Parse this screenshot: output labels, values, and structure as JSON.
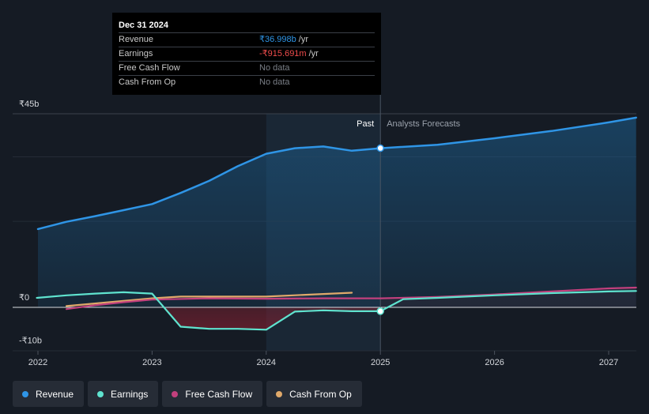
{
  "chart_data": {
    "type": "line",
    "currency_prefix": "₹",
    "y_tick_labels": [
      "₹45b",
      "₹0",
      "-₹10b"
    ],
    "ylim": [
      -10,
      45
    ],
    "x_tick_labels": [
      "2022",
      "2023",
      "2024",
      "2025",
      "2026",
      "2027"
    ],
    "x_ticks": [
      2022,
      2023,
      2024,
      2025,
      2026,
      2027
    ],
    "xlim": [
      2021.8,
      2027.24
    ],
    "past_label": "Past",
    "forecast_label": "Analysts Forecasts",
    "divider_x": 2025.0,
    "highlight_start_x": 2024.0,
    "series": [
      {
        "name": "Revenue",
        "color": "#2f95e6",
        "unit": "b",
        "past": [
          [
            2022.0,
            18.2
          ],
          [
            2022.25,
            19.9
          ],
          [
            2022.5,
            21.2
          ],
          [
            2022.75,
            22.6
          ],
          [
            2023.0,
            24.0
          ],
          [
            2023.25,
            26.6
          ],
          [
            2023.5,
            29.4
          ],
          [
            2023.75,
            32.8
          ],
          [
            2024.0,
            35.7
          ],
          [
            2024.25,
            37.0
          ],
          [
            2024.5,
            37.4
          ],
          [
            2024.75,
            36.4
          ],
          [
            2025.0,
            37.0
          ]
        ],
        "forecast": [
          [
            2025.0,
            37.0
          ],
          [
            2025.5,
            37.8
          ],
          [
            2026.0,
            39.3
          ],
          [
            2026.5,
            41.0
          ],
          [
            2027.0,
            43.0
          ],
          [
            2027.24,
            44.1
          ]
        ]
      },
      {
        "name": "Earnings",
        "color": "#5fe3cf",
        "unit": "b",
        "past": [
          [
            2021.99,
            2.2
          ],
          [
            2022.25,
            2.8
          ],
          [
            2022.5,
            3.2
          ],
          [
            2022.75,
            3.5
          ],
          [
            2023.0,
            3.2
          ],
          [
            2023.25,
            -4.5
          ],
          [
            2023.5,
            -5.0
          ],
          [
            2023.75,
            -5.0
          ],
          [
            2024.0,
            -5.2
          ],
          [
            2024.25,
            -1.0
          ],
          [
            2024.5,
            -0.7
          ],
          [
            2024.75,
            -0.9
          ],
          [
            2025.0,
            -0.9
          ]
        ],
        "forecast": [
          [
            2025.0,
            -0.9
          ],
          [
            2025.2,
            1.9
          ],
          [
            2025.5,
            2.2
          ],
          [
            2026.0,
            2.8
          ],
          [
            2026.5,
            3.3
          ],
          [
            2027.0,
            3.7
          ],
          [
            2027.24,
            3.8
          ]
        ]
      },
      {
        "name": "Free Cash Flow",
        "color": "#c2407d",
        "unit": "b",
        "past": [
          [
            2022.25,
            -0.4
          ],
          [
            2022.5,
            0.5
          ],
          [
            2022.75,
            1.2
          ],
          [
            2023.0,
            1.8
          ],
          [
            2023.5,
            2.1
          ],
          [
            2024.0,
            2.0
          ],
          [
            2024.5,
            2.1
          ],
          [
            2025.0,
            2.1
          ]
        ],
        "forecast": [
          [
            2025.0,
            2.1
          ],
          [
            2025.5,
            2.4
          ],
          [
            2026.0,
            3.0
          ],
          [
            2026.5,
            3.7
          ],
          [
            2027.0,
            4.4
          ],
          [
            2027.24,
            4.6
          ]
        ]
      },
      {
        "name": "Cash From Op",
        "color": "#e0a96a",
        "unit": "b",
        "past": [
          [
            2022.25,
            0.3
          ],
          [
            2022.5,
            0.9
          ],
          [
            2022.75,
            1.5
          ],
          [
            2023.0,
            2.1
          ],
          [
            2023.25,
            2.5
          ],
          [
            2023.5,
            2.5
          ],
          [
            2024.0,
            2.5
          ],
          [
            2024.5,
            3.1
          ],
          [
            2024.75,
            3.4
          ]
        ],
        "forecast": []
      }
    ],
    "tooltip": {
      "date": "Dec 31 2024",
      "rows": [
        {
          "label": "Revenue",
          "value": "₹36.998b",
          "unit": "/yr",
          "color": "#2f95e6"
        },
        {
          "label": "Earnings",
          "value": "-₹915.691m",
          "unit": "/yr",
          "color": "#f04c4c"
        },
        {
          "label": "Free Cash Flow",
          "value": "No data",
          "unit": "",
          "color": "#7a7f87"
        },
        {
          "label": "Cash From Op",
          "value": "No data",
          "unit": "",
          "color": "#7a7f87"
        }
      ]
    },
    "markers": [
      {
        "series": "Revenue",
        "x": 2025.0,
        "y": 37.0
      },
      {
        "series": "Earnings",
        "x": 2025.0,
        "y": -0.9
      }
    ]
  },
  "legend": [
    {
      "label": "Revenue",
      "color": "#2f95e6"
    },
    {
      "label": "Earnings",
      "color": "#5fe3cf"
    },
    {
      "label": "Free Cash Flow",
      "color": "#c2407d"
    },
    {
      "label": "Cash From Op",
      "color": "#e0a96a"
    }
  ]
}
